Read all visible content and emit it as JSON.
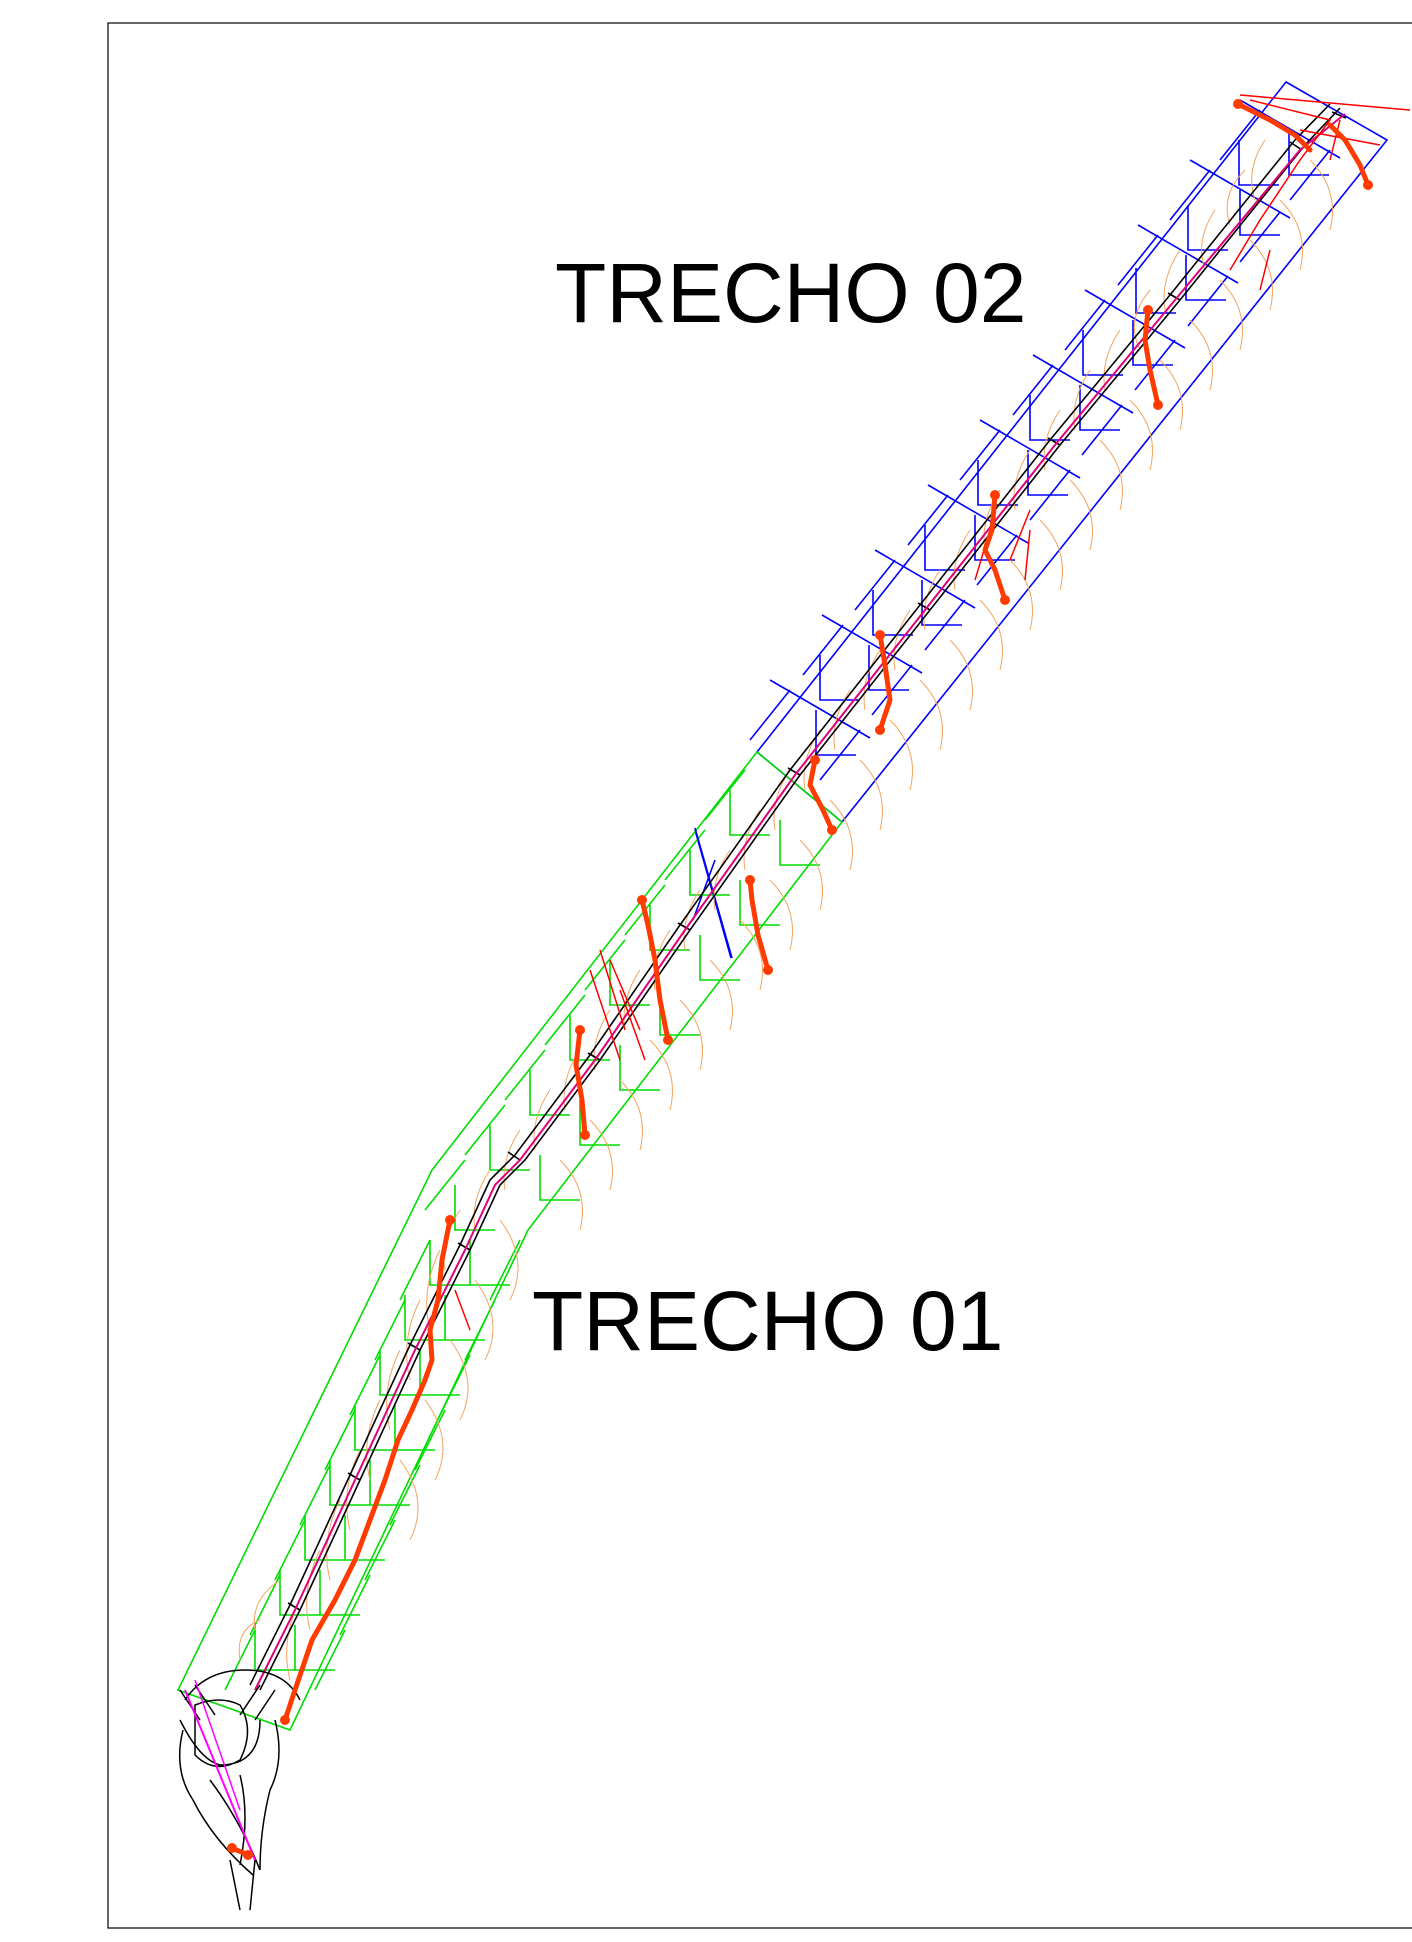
{
  "drawing": {
    "labels": {
      "segment_02": "TRECHO 02",
      "segment_01": "TRECHO 01"
    },
    "segments": [
      {
        "id": "02",
        "boundary_color": "#0000ff"
      },
      {
        "id": "01",
        "boundary_color": "#00dd00"
      }
    ],
    "colors": {
      "frame": "#000000",
      "road_edges": "#000000",
      "centerline": "#e0007a",
      "drainage_main": "#ff3b00",
      "drainage_secondary": "#ff0000",
      "contours": "#f4a460",
      "axis_magenta": "#ff00ff",
      "blue_boundary": "#0000ff",
      "green_boundary": "#00dd00"
    },
    "icons": [
      "north-arrow-absent"
    ]
  }
}
